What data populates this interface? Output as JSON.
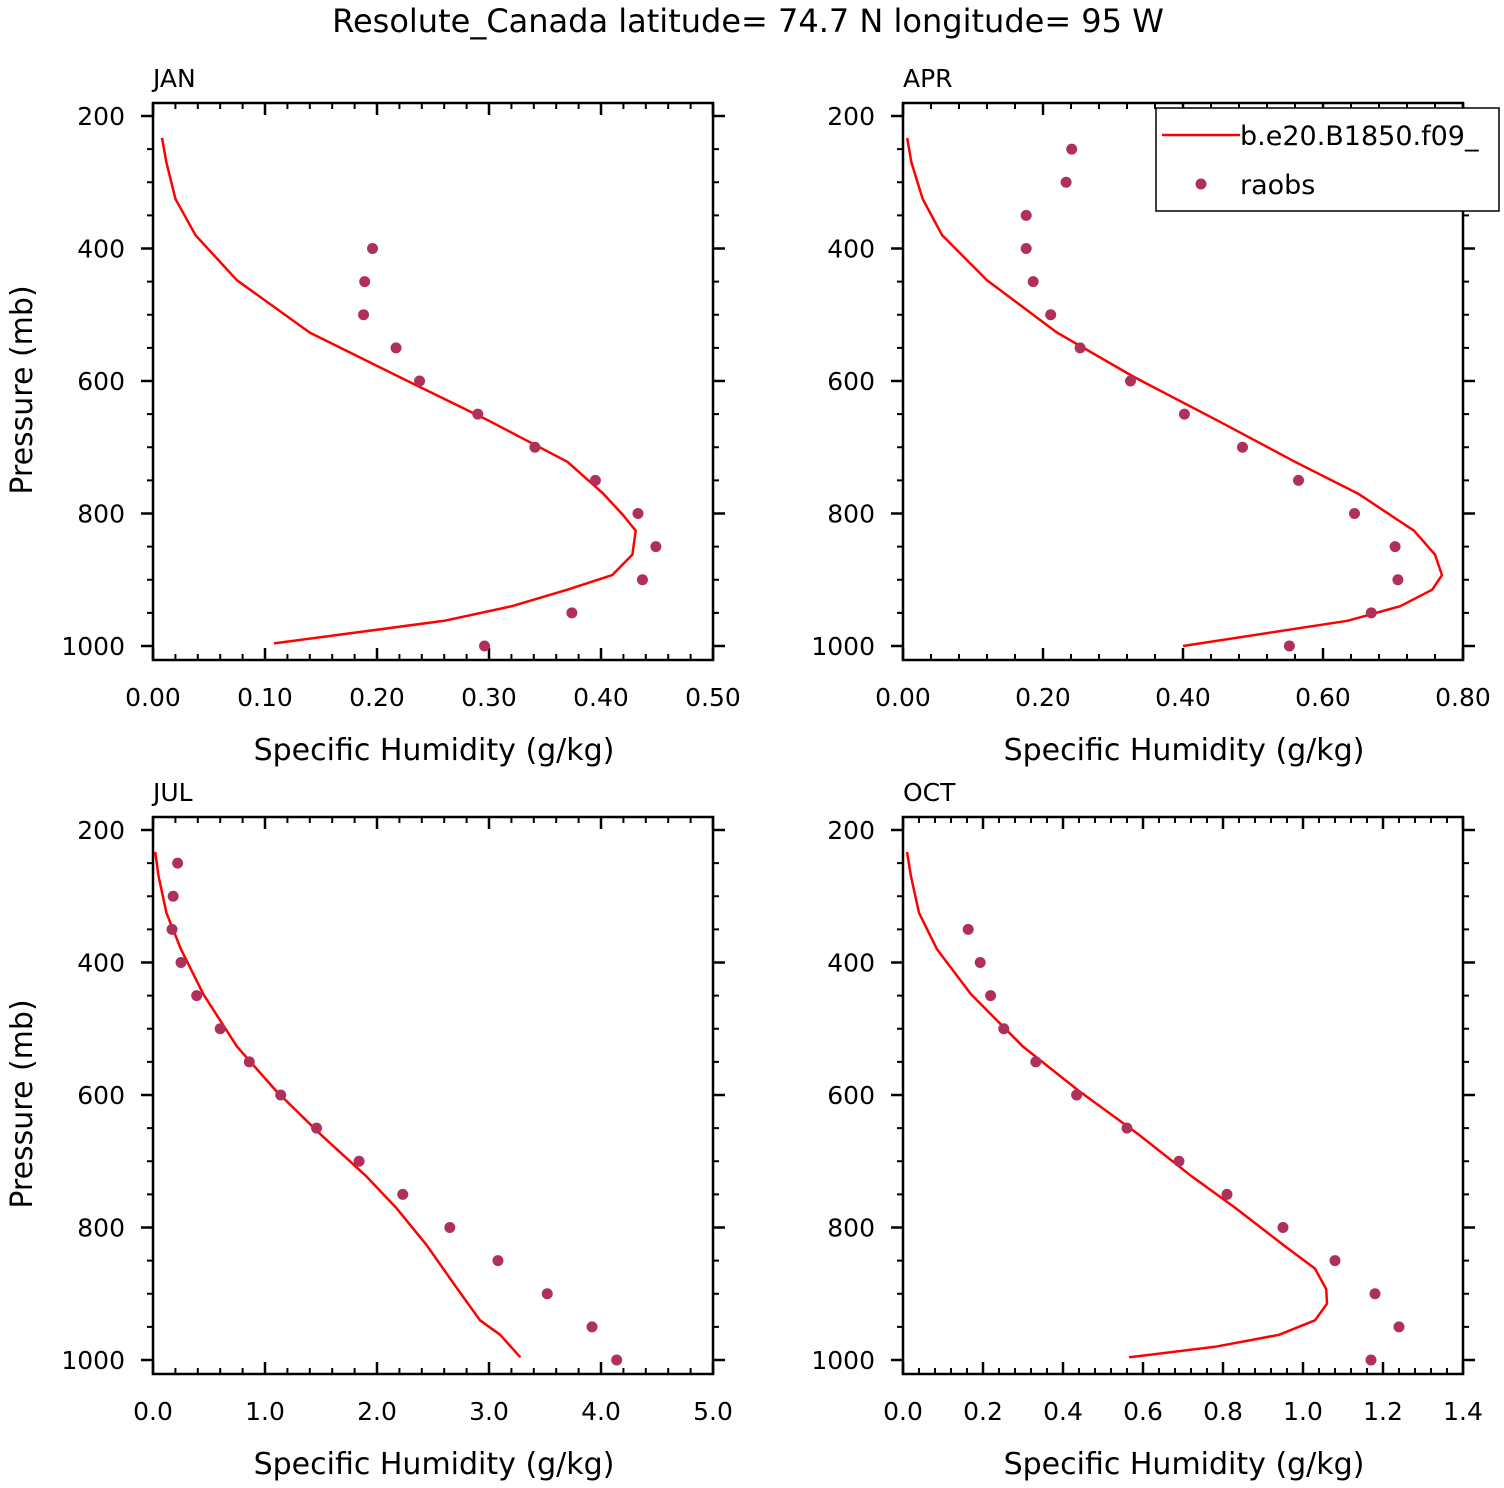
{
  "figure_title": "Resolute_Canada  latitude= 74.7 N longitude= 95 W",
  "legend": {
    "entries": [
      {
        "label": "b.e20.B1850.f09_",
        "style": "line",
        "color_key": "model"
      },
      {
        "label": "raobs",
        "style": "marker",
        "color_key": "obs"
      }
    ]
  },
  "colors": {
    "model": "#ff0000",
    "obs": "#b0305c",
    "axes": "#000000",
    "background": "#ffffff"
  },
  "chart_data": [
    {
      "type": "line",
      "panel": "JAN",
      "xlabel": "Specific Humidity (g/kg)",
      "ylabel": "Pressure (mb)",
      "xlim": [
        0.0,
        0.5
      ],
      "ylim": [
        200,
        1000
      ],
      "y_inverted": true,
      "xticks": [
        "0.00",
        "0.10",
        "0.20",
        "0.30",
        "0.40",
        "0.50"
      ],
      "xtick_values": [
        0.0,
        0.1,
        0.2,
        0.3,
        0.4,
        0.5
      ],
      "yticks": [
        "200",
        "400",
        "600",
        "800",
        "1000"
      ],
      "ytick_values": [
        200,
        400,
        600,
        800,
        1000
      ],
      "grid": false,
      "series": [
        {
          "name": "b.e20.B1850.f09_",
          "kind": "line",
          "color_key": "model",
          "x": [
            0.008,
            0.012,
            0.02,
            0.038,
            0.075,
            0.14,
            0.22,
            0.3,
            0.37,
            0.402,
            0.42,
            0.431,
            0.428,
            0.41,
            0.37,
            0.32,
            0.26,
            0.108
          ],
          "y": [
            233,
            270,
            325,
            380,
            448,
            527,
            594,
            660,
            722,
            770,
            803,
            826,
            862,
            893,
            915,
            940,
            962,
            996
          ]
        },
        {
          "name": "raobs",
          "kind": "scatter",
          "color_key": "obs",
          "x": [
            0.196,
            0.189,
            0.188,
            0.217,
            0.238,
            0.29,
            0.341,
            0.395,
            0.433,
            0.449,
            0.437,
            0.374,
            0.296
          ],
          "y": [
            400,
            450,
            500,
            550,
            600,
            650,
            700,
            750,
            800,
            850,
            900,
            950,
            1000
          ]
        }
      ]
    },
    {
      "type": "line",
      "panel": "APR",
      "xlabel": "Specific Humidity (g/kg)",
      "ylabel": "",
      "xlim": [
        0.0,
        0.8
      ],
      "ylim": [
        200,
        1000
      ],
      "y_inverted": true,
      "xticks": [
        "0.00",
        "0.20",
        "0.40",
        "0.60",
        "0.80"
      ],
      "xtick_values": [
        0.0,
        0.2,
        0.4,
        0.6,
        0.8
      ],
      "yticks": [
        "200",
        "400",
        "600",
        "800",
        "1000"
      ],
      "ytick_values": [
        200,
        400,
        600,
        800,
        1000
      ],
      "grid": false,
      "legend_position": "top-right",
      "series": [
        {
          "name": "b.e20.B1850.f09_",
          "kind": "line",
          "color_key": "model",
          "x": [
            0.006,
            0.012,
            0.028,
            0.056,
            0.12,
            0.22,
            0.33,
            0.45,
            0.56,
            0.65,
            0.73,
            0.76,
            0.77,
            0.756,
            0.71,
            0.635,
            0.4
          ],
          "y": [
            233,
            270,
            325,
            380,
            448,
            527,
            594,
            660,
            722,
            770,
            826,
            862,
            893,
            915,
            940,
            962,
            1000
          ]
        },
        {
          "name": "raobs",
          "kind": "scatter",
          "color_key": "obs",
          "x": [
            0.241,
            0.233,
            0.176,
            0.176,
            0.186,
            0.211,
            0.253,
            0.325,
            0.402,
            0.485,
            0.565,
            0.645,
            0.703,
            0.707,
            0.669,
            0.552
          ],
          "y": [
            250,
            300,
            350,
            400,
            450,
            500,
            550,
            600,
            650,
            700,
            750,
            800,
            850,
            900,
            950,
            1000
          ]
        }
      ]
    },
    {
      "type": "line",
      "panel": "JUL",
      "xlabel": "Specific Humidity (g/kg)",
      "ylabel": "Pressure (mb)",
      "xlim": [
        0.0,
        5.0
      ],
      "ylim": [
        200,
        1000
      ],
      "y_inverted": true,
      "xticks": [
        "0.0",
        "1.0",
        "2.0",
        "3.0",
        "4.0",
        "5.0"
      ],
      "xtick_values": [
        0.0,
        1.0,
        2.0,
        3.0,
        4.0,
        5.0
      ],
      "yticks": [
        "200",
        "400",
        "600",
        "800",
        "1000"
      ],
      "ytick_values": [
        200,
        400,
        600,
        800,
        1000
      ],
      "grid": false,
      "series": [
        {
          "name": "b.e20.B1850.f09_",
          "kind": "line",
          "color_key": "model",
          "x": [
            0.02,
            0.05,
            0.12,
            0.25,
            0.45,
            0.75,
            1.1,
            1.5,
            1.9,
            2.17,
            2.44,
            2.72,
            2.92,
            3.1,
            3.28
          ],
          "y": [
            233,
            270,
            325,
            380,
            448,
            527,
            594,
            660,
            722,
            770,
            826,
            893,
            940,
            962,
            996
          ]
        },
        {
          "name": "raobs",
          "kind": "scatter",
          "color_key": "obs",
          "x": [
            0.22,
            0.18,
            0.17,
            0.25,
            0.39,
            0.6,
            0.86,
            1.14,
            1.46,
            1.84,
            2.23,
            2.65,
            3.08,
            3.52,
            3.92,
            4.14
          ],
          "y": [
            250,
            300,
            350,
            400,
            450,
            500,
            550,
            600,
            650,
            700,
            750,
            800,
            850,
            900,
            950,
            1000
          ]
        }
      ]
    },
    {
      "type": "line",
      "panel": "OCT",
      "xlabel": "Specific Humidity (g/kg)",
      "ylabel": "",
      "xlim": [
        0.0,
        1.4
      ],
      "ylim": [
        200,
        1000
      ],
      "y_inverted": true,
      "xticks": [
        "0.0",
        "0.2",
        "0.4",
        "0.6",
        "0.8",
        "1.0",
        "1.2",
        "1.4"
      ],
      "xtick_values": [
        0.0,
        0.2,
        0.4,
        0.6,
        0.8,
        1.0,
        1.2,
        1.4
      ],
      "yticks": [
        "200",
        "400",
        "600",
        "800",
        "1000"
      ],
      "ytick_values": [
        200,
        400,
        600,
        800,
        1000
      ],
      "grid": false,
      "series": [
        {
          "name": "b.e20.B1850.f09_",
          "kind": "line",
          "color_key": "model",
          "x": [
            0.01,
            0.02,
            0.04,
            0.085,
            0.17,
            0.3,
            0.44,
            0.59,
            0.72,
            0.83,
            0.95,
            1.03,
            1.058,
            1.06,
            1.03,
            0.94,
            0.78,
            0.565
          ],
          "y": [
            233,
            270,
            325,
            380,
            448,
            527,
            594,
            660,
            722,
            770,
            826,
            862,
            893,
            915,
            940,
            962,
            980,
            996
          ]
        },
        {
          "name": "raobs",
          "kind": "scatter",
          "color_key": "obs",
          "x": [
            0.163,
            0.193,
            0.219,
            0.252,
            0.332,
            0.434,
            0.56,
            0.69,
            0.81,
            0.95,
            1.08,
            1.18,
            1.24,
            1.17
          ],
          "y": [
            350,
            400,
            450,
            500,
            550,
            600,
            650,
            700,
            750,
            800,
            850,
            900,
            950,
            1000
          ]
        }
      ]
    }
  ]
}
